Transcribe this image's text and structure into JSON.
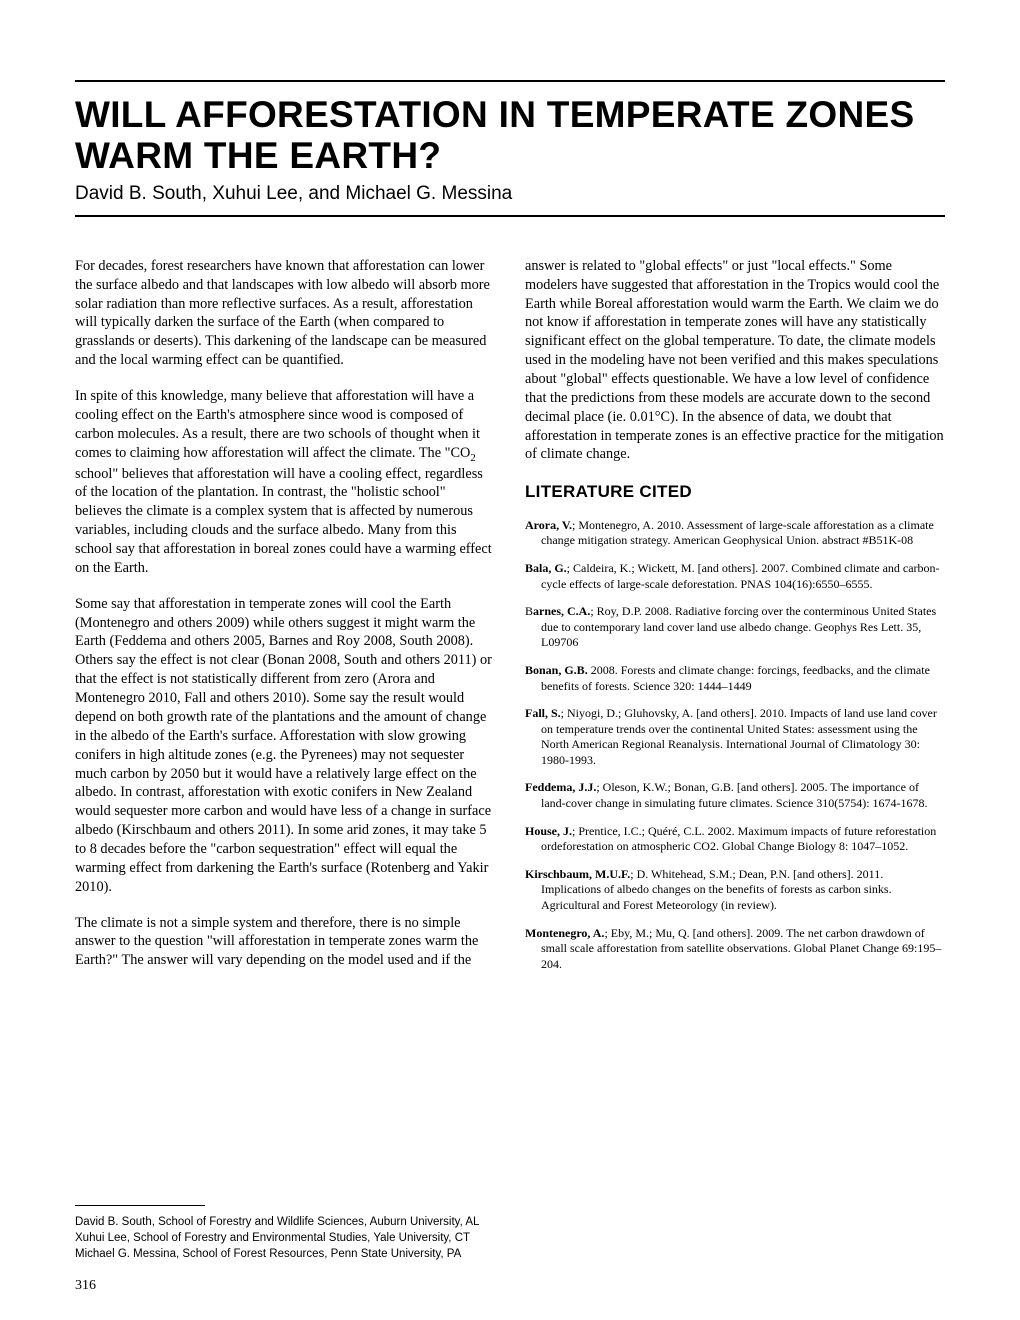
{
  "title": "WILL AFFORESTATION IN TEMPERATE ZONES WARM THE EARTH?",
  "authors": "David B. South, Xuhui Lee, and Michael G. Messina",
  "paragraphs": {
    "p1": "For decades, forest researchers have known that afforestation can lower the surface albedo and that landscapes with low albedo will absorb more solar radiation than more reflective surfaces. As a result, afforestation will typically darken the surface of the Earth (when compared to grasslands or deserts). This darkening of the landscape can be measured and the local warming effect can be quantified.",
    "p2a": "In spite of this knowledge, many believe that afforestation will have a cooling effect on the Earth's atmosphere since wood is composed of carbon molecules. As a result, there are two schools of thought when it comes to claiming how afforestation will affect the climate. The \"CO",
    "p2b": " school\" believes that afforestation will have a cooling effect, regardless of the location of the plantation. In contrast, the \"holistic school\" believes the climate is a complex system that is affected by numerous variables, including clouds and the surface albedo. Many from this school say that afforestation in boreal zones could have a warming effect on the Earth.",
    "p3": "Some say that afforestation in temperate zones will cool the Earth (Montenegro and others 2009) while others suggest it might warm the Earth (Feddema and others 2005, Barnes and Roy 2008, South 2008). Others say the effect is not clear (Bonan 2008, South and others 2011) or that the effect is not statistically different from zero (Arora and Montenegro 2010, Fall and others 2010). Some say the result would depend on both growth rate of the plantations and the amount of change in the albedo of the Earth's surface. Afforestation with slow growing conifers in high altitude zones (e.g. the Pyrenees) may not sequester much carbon by 2050 but it would have a relatively large effect on the albedo. In contrast, afforestation with exotic conifers in New Zealand would sequester more carbon and would have less of a change in surface albedo (Kirschbaum and others 2011). In some arid zones, it may take 5 to 8 decades before the \"carbon sequestration\" effect will equal the warming effect from darkening the Earth's surface (Rotenberg and Yakir 2010).",
    "p4": "The climate is not a simple system and therefore, there is no simple answer to the question \"will afforestation in temperate zones warm the Earth?\" The answer will vary depending on the model used and if the answer is related to \"global effects\" or just \"local effects.\" Some modelers have suggested that afforestation in the Tropics would cool the Earth while Boreal afforestation would warm the Earth. We claim we do not know if afforestation in temperate zones will have any statistically significant effect on the global temperature. To date, the climate models used in the modeling have not been verified and this makes speculations about \"global\" effects questionable. We have a low level of confidence that the predictions from these models are accurate down to the second decimal place (ie. 0.01°C). In the absence of data, we doubt that afforestation in temperate zones is an effective practice for the mitigation of climate change."
  },
  "lit_heading": "LITERATURE CITED",
  "refs": {
    "r1": {
      "a": "Arora, V.",
      "t": "; Montenegro, A. 2010. Assessment of large-scale afforestation as a climate change mitigation strategy. American Geophysical Union. abstract #B51K-08"
    },
    "r2": {
      "a": "Bala, G.",
      "t": "; Caldeira, K.; Wickett, M. [and others]. 2007. Combined climate and carbon-cycle effects of large-scale deforestation. PNAS 104(16):6550–6555."
    },
    "r3": {
      "a": "arnes, C.A.",
      "pre": "B",
      "t": "; Roy, D.P. 2008. Radiative forcing over the conterminous United States due to contemporary land cover land use albedo change. Geophys Res Lett. 35, L09706"
    },
    "r4": {
      "a": "Bonan, G.B.",
      "t": " 2008. Forests and climate change: forcings, feedbacks, and the climate benefits of forests. Science 320: 1444–1449"
    },
    "r5": {
      "a": "Fall, S.",
      "t": "; Niyogi, D.; Gluhovsky, A. [and others]. 2010. Impacts of land use land cover on temperature trends over the continental United States: assessment using the North American Regional Reanalysis. International Journal of Climatology 30: 1980-1993."
    },
    "r6": {
      "a": "Feddema, J.J.",
      "t": "; Oleson, K.W.; Bonan, G.B. [and others]. 2005. The importance of land-cover change in simulating future climates. Science 310(5754): 1674-1678."
    },
    "r7": {
      "a": "House, J.",
      "t": "; Prentice, I.C.; Quéré, C.L. 2002. Maximum impacts of future reforestation ordeforestation on atmospheric CO2. Global Change Biology 8: 1047–1052."
    },
    "r8": {
      "a": "Kirschbaum, M.U.F.",
      "t": "; D. Whitehead, S.M.; Dean, P.N. [and others]. 2011. Implications of albedo changes on the benefits of forests as carbon sinks. Agricultural and Forest Meteorology (in review)."
    },
    "r9": {
      "a": "Montenegro, A.",
      "t": "; Eby, M.; Mu, Q. [and others]. 2009. The net carbon drawdown of small scale afforestation from satellite observations. Global Planet Change 69:195–204."
    }
  },
  "affiliations": {
    "a1": "David B. South, School of Forestry and Wildlife Sciences, Auburn University, AL",
    "a2": "Xuhui Lee, School of Forestry and Environmental Studies, Yale University, CT",
    "a3": "Michael G. Messina, School of Forest Resources, Penn State University, PA"
  },
  "page_number": "316",
  "co2_sub": "2"
}
